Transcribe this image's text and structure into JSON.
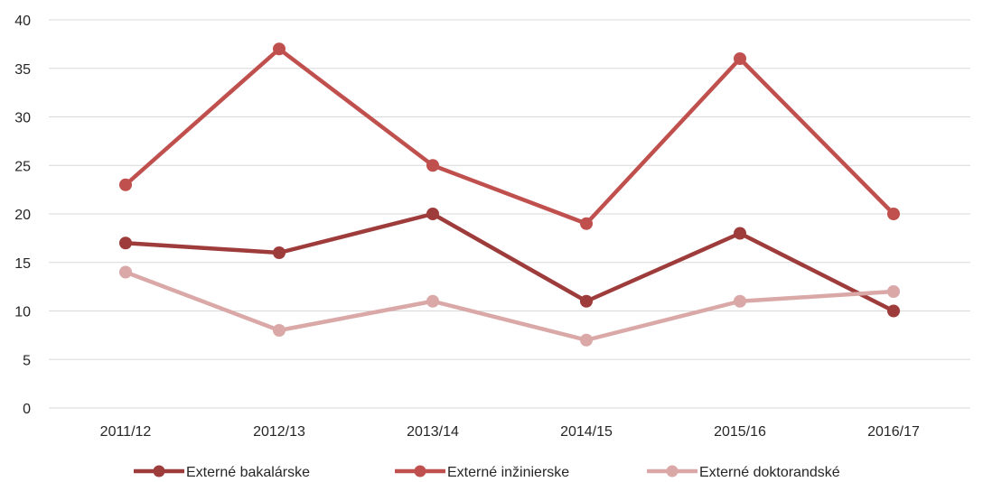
{
  "chart_data": {
    "type": "line",
    "categories": [
      "2011/12",
      "2012/13",
      "2013/14",
      "2014/15",
      "2015/16",
      "2016/17"
    ],
    "series": [
      {
        "name": "Externé bakalárske",
        "values": [
          17,
          16,
          20,
          11,
          18,
          10
        ],
        "color": "#9e3b3b"
      },
      {
        "name": "Externé inžinierske",
        "values": [
          23,
          37,
          25,
          19,
          36,
          20
        ],
        "color": "#c0504d"
      },
      {
        "name": "Externé doktorandské",
        "values": [
          14,
          8,
          11,
          7,
          11,
          12
        ],
        "color": "#d9a8a7"
      }
    ],
    "ylim": [
      0,
      40
    ],
    "yticks": [
      0,
      5,
      10,
      15,
      20,
      25,
      30,
      35,
      40
    ],
    "grid": true,
    "legend": "bottom-center"
  }
}
